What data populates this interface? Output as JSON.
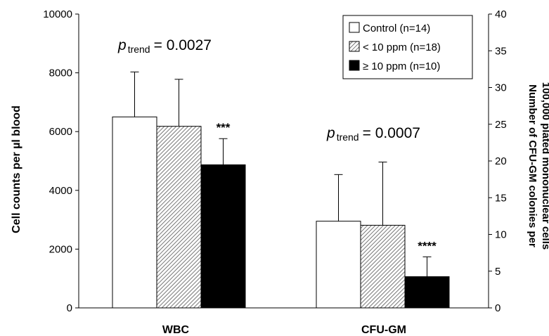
{
  "chart_data": {
    "type": "bar",
    "groups": [
      {
        "name": "WBC",
        "axis": "left",
        "p_label": "p",
        "p_sub": "trend",
        "p_value": "= 0.0027",
        "bars": [
          {
            "series": "Control (n=14)",
            "value": 6500,
            "error": 1530,
            "annotation": ""
          },
          {
            "series": "< 10 ppm (n=18)",
            "value": 6180,
            "error": 1600,
            "annotation": ""
          },
          {
            "series": "≥ 10 ppm (n=10)",
            "value": 4870,
            "error": 890,
            "annotation": "***"
          }
        ]
      },
      {
        "name": "CFU-GM",
        "axis": "right",
        "p_label": "p",
        "p_sub": "trend",
        "p_value": "= 0.0007",
        "bars": [
          {
            "series": "Control (n=14)",
            "value": 11.8,
            "error": 6.35,
            "annotation": ""
          },
          {
            "series": "< 10 ppm (n=18)",
            "value": 11.25,
            "error": 8.6,
            "annotation": ""
          },
          {
            "series": "≥ 10 ppm (n=10)",
            "value": 4.25,
            "error": 2.7,
            "annotation": "****"
          }
        ]
      }
    ],
    "series": [
      {
        "name": "Control (n=14)",
        "fill": "white"
      },
      {
        "name": "< 10 ppm (n=18)",
        "fill": "hatch"
      },
      {
        "name": "≥ 10 ppm (n=10)",
        "fill": "black"
      }
    ],
    "left_axis": {
      "label": "Cell counts per µl blood",
      "range": [
        0,
        10000
      ],
      "ticks": [
        0,
        2000,
        4000,
        6000,
        8000,
        10000
      ]
    },
    "right_axis": {
      "label_line1": "Number of CFU-GM colonies per",
      "label_line2": "100,000 plated mononuclear cells",
      "range": [
        0,
        40
      ],
      "ticks": [
        0,
        5,
        10,
        15,
        20,
        25,
        30,
        35,
        40
      ]
    },
    "legend_position": "top-right",
    "grid": false,
    "colors": {
      "bar_dark": "#000000",
      "outline": "#000000",
      "background": "#ffffff"
    }
  }
}
